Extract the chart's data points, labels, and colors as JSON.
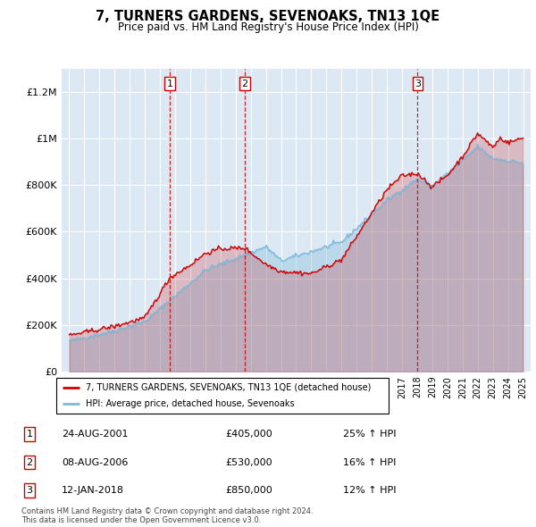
{
  "title": "7, TURNERS GARDENS, SEVENOAKS, TN13 1QE",
  "subtitle": "Price paid vs. HM Land Registry's House Price Index (HPI)",
  "legend_line1": "7, TURNERS GARDENS, SEVENOAKS, TN13 1QE (detached house)",
  "legend_line2": "HPI: Average price, detached house, Sevenoaks",
  "footnote1": "Contains HM Land Registry data © Crown copyright and database right 2024.",
  "footnote2": "This data is licensed under the Open Government Licence v3.0.",
  "transactions": [
    {
      "num": 1,
      "date": "24-AUG-2001",
      "price": 405000,
      "year": 2001.65,
      "pct": "25%",
      "dir": "↑"
    },
    {
      "num": 2,
      "date": "08-AUG-2006",
      "price": 530000,
      "year": 2006.6,
      "pct": "16%",
      "dir": "↑"
    },
    {
      "num": 3,
      "date": "12-JAN-2018",
      "price": 850000,
      "year": 2018.03,
      "pct": "12%",
      "dir": "↑"
    }
  ],
  "hpi_color": "#7db9d8",
  "price_color": "#cc0000",
  "vline_color": "#cc0000",
  "bg_color": "#dce9f5",
  "grid_color": "#ffffff",
  "ylim": [
    0,
    1300000
  ],
  "xlim_start": 1994.5,
  "xlim_end": 2025.5,
  "yticks": [
    0,
    200000,
    400000,
    600000,
    800000,
    1000000,
    1200000
  ],
  "ytick_labels": [
    "£0",
    "£200K",
    "£400K",
    "£600K",
    "£800K",
    "£1M",
    "£1.2M"
  ]
}
